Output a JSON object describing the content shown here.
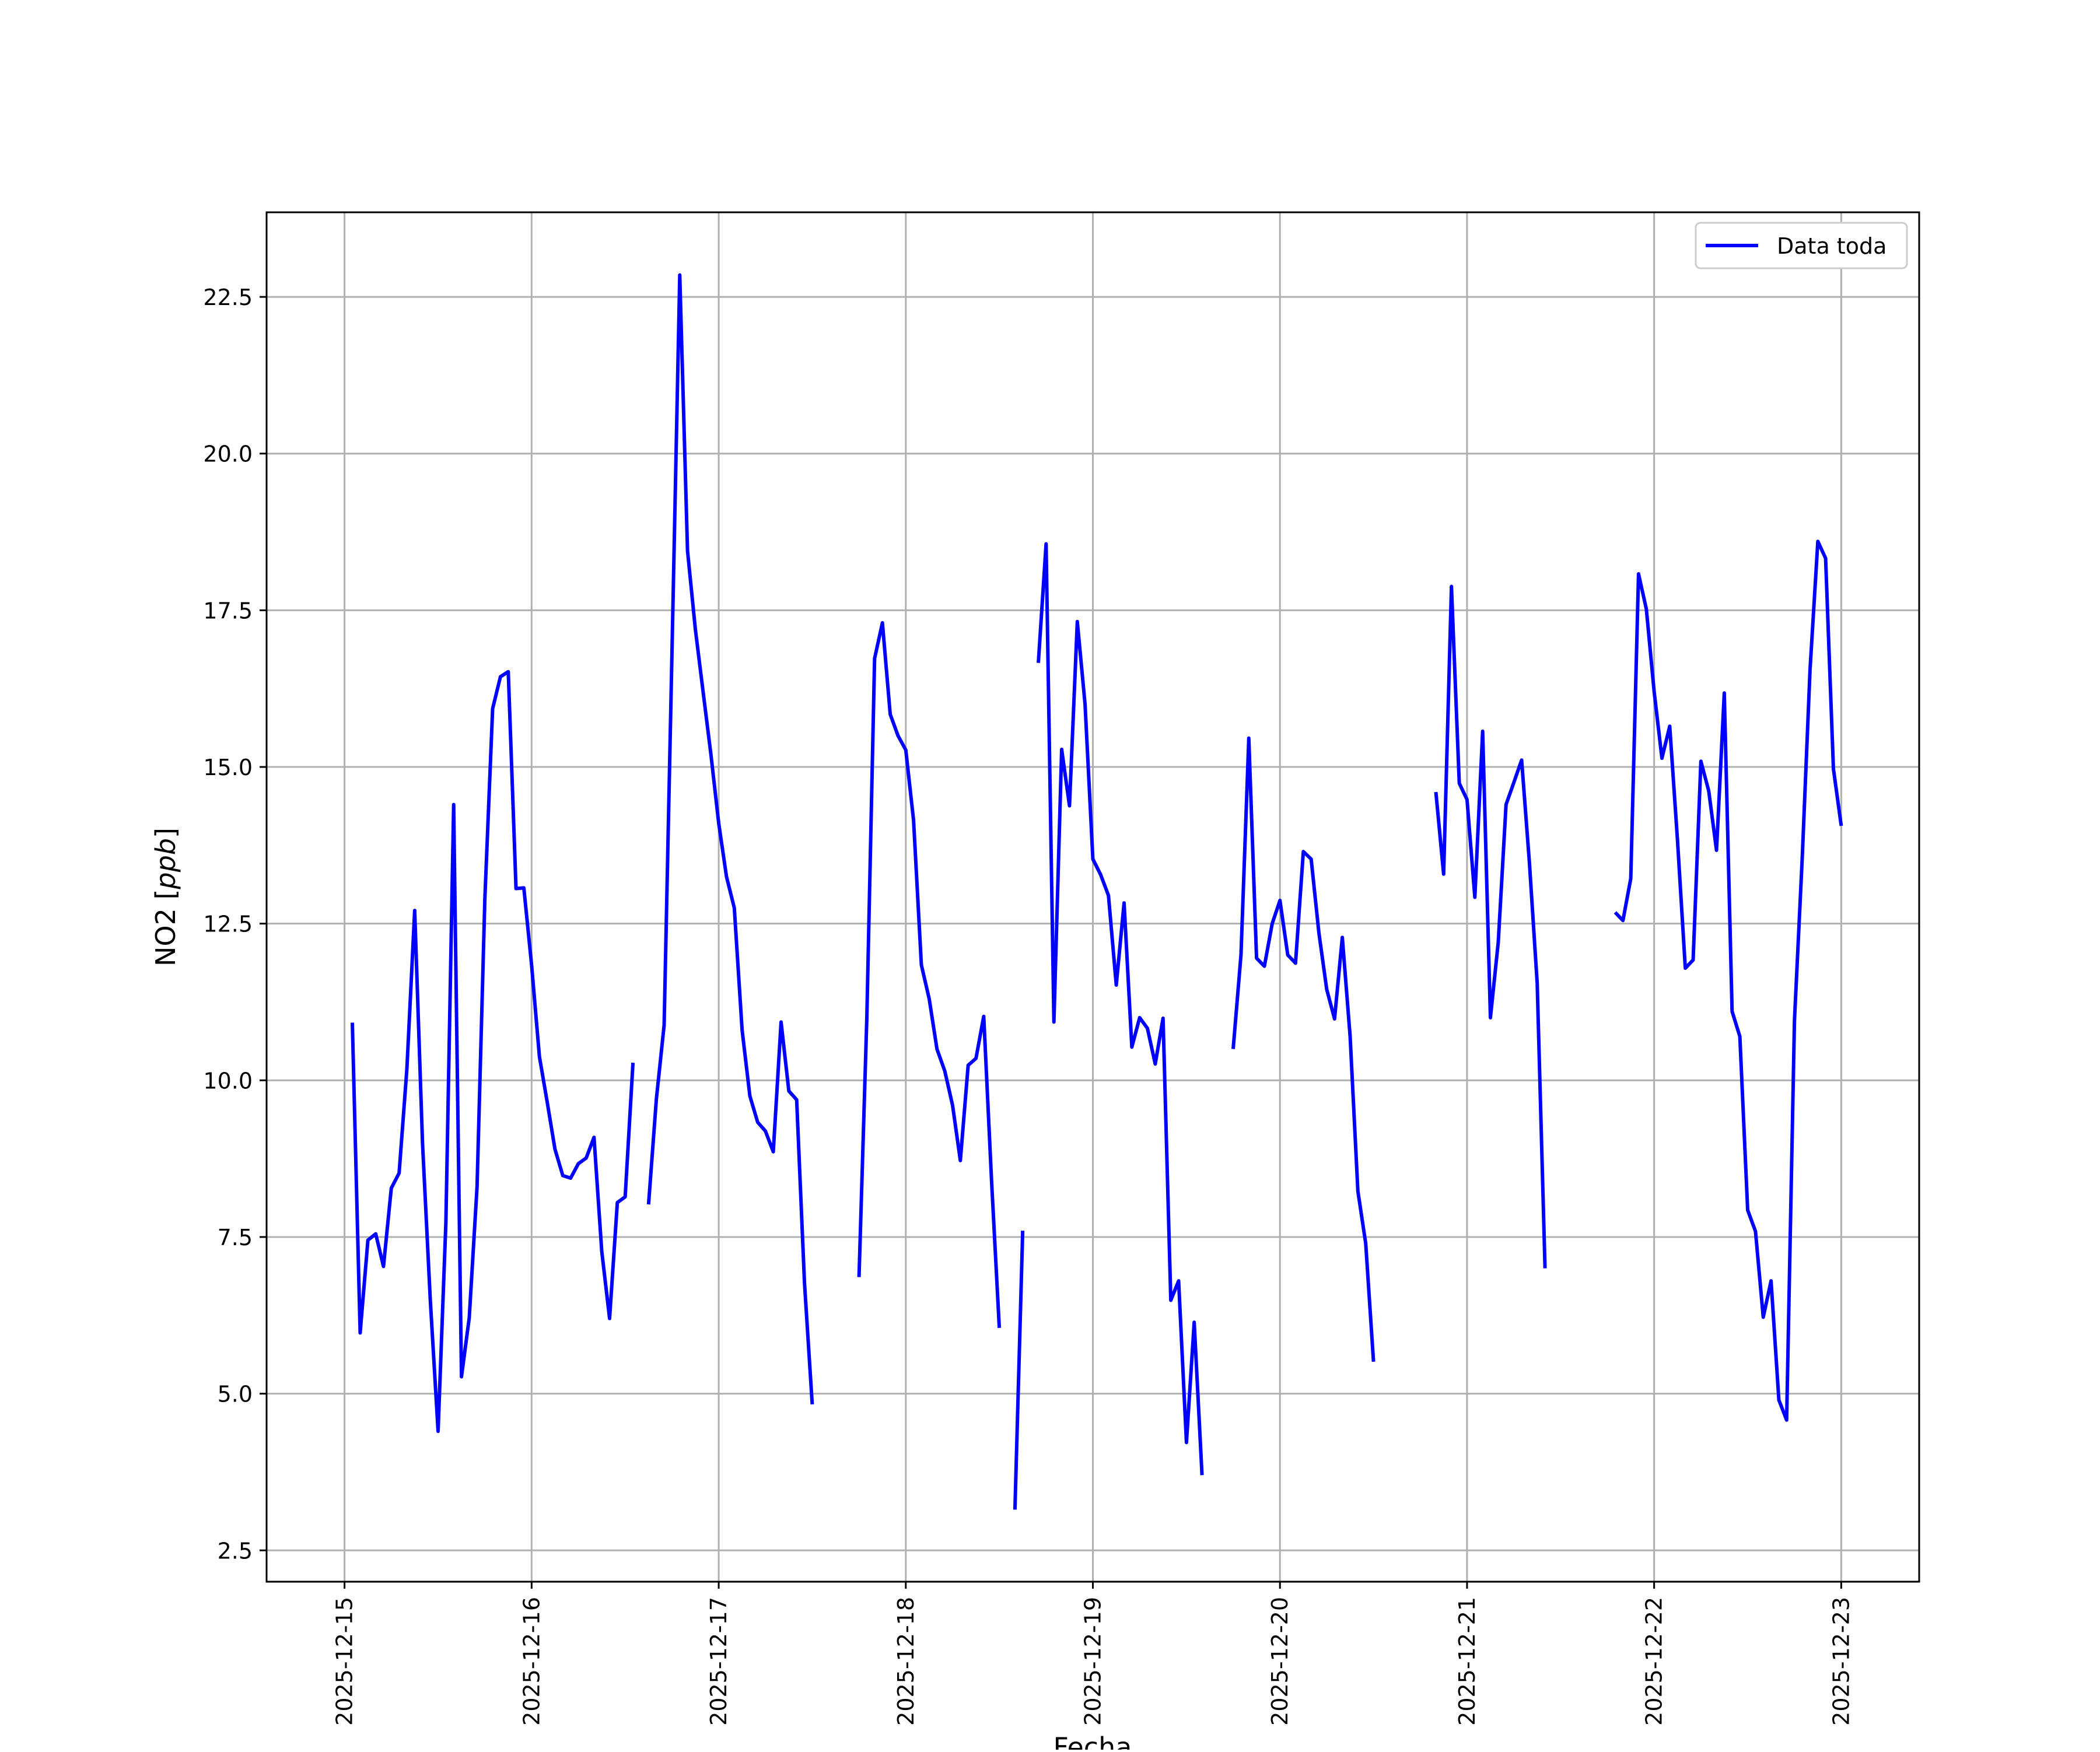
{
  "chart_data": {
    "type": "line",
    "title": "",
    "xlabel": "Fecha",
    "ylabel": "NO2 [ppb]",
    "ylabel_parts": {
      "main": "NO2 [",
      "italic": "ppb",
      "end": "]"
    },
    "x_range": [
      "2025-12-14 14:00",
      "2025-12-23 10:00"
    ],
    "ylim": [
      2.0,
      23.85
    ],
    "grid": true,
    "legend_position": "top-right",
    "x_ticks": [
      "2025-12-15",
      "2025-12-16",
      "2025-12-17",
      "2025-12-18",
      "2025-12-19",
      "2025-12-20",
      "2025-12-21",
      "2025-12-22",
      "2025-12-23"
    ],
    "y_ticks": [
      "2.5",
      "5.0",
      "7.5",
      "10.0",
      "12.5",
      "15.0",
      "17.5",
      "20.0",
      "22.5"
    ],
    "series": [
      {
        "name": "Data toda",
        "color": "#0000ff",
        "segments": [
          [
            [
              "2025-12-15 01:00",
              10.92
            ],
            [
              "2025-12-15 02:00",
              5.97
            ],
            [
              "2025-12-15 03:00",
              7.45
            ],
            [
              "2025-12-15 04:00",
              7.55
            ],
            [
              "2025-12-15 05:00",
              7.03
            ],
            [
              "2025-12-15 06:00",
              8.28
            ],
            [
              "2025-12-15 07:00",
              8.52
            ],
            [
              "2025-12-15 08:00",
              10.18
            ],
            [
              "2025-12-15 09:00",
              12.71
            ],
            [
              "2025-12-15 10:00",
              9.0
            ],
            [
              "2025-12-15 11:00",
              6.5
            ],
            [
              "2025-12-15 12:00",
              4.4
            ],
            [
              "2025-12-15 13:00",
              7.74
            ],
            [
              "2025-12-15 14:00",
              14.4
            ],
            [
              "2025-12-15 15:00",
              5.27
            ],
            [
              "2025-12-15 16:00",
              6.21
            ],
            [
              "2025-12-15 17:00",
              8.3
            ],
            [
              "2025-12-15 18:00",
              12.9
            ],
            [
              "2025-12-15 19:00",
              15.93
            ],
            [
              "2025-12-15 20:00",
              16.44
            ],
            [
              "2025-12-15 21:00",
              16.52
            ],
            [
              "2025-12-15 22:00",
              13.06
            ],
            [
              "2025-12-15 23:00",
              13.07
            ],
            [
              "2025-12-16 00:00",
              11.84
            ],
            [
              "2025-12-16 01:00",
              10.38
            ],
            [
              "2025-12-16 02:00",
              9.65
            ],
            [
              "2025-12-16 03:00",
              8.9
            ],
            [
              "2025-12-16 04:00",
              8.48
            ],
            [
              "2025-12-16 05:00",
              8.44
            ],
            [
              "2025-12-16 06:00",
              8.67
            ],
            [
              "2025-12-16 07:00",
              8.76
            ],
            [
              "2025-12-16 08:00",
              9.09
            ],
            [
              "2025-12-16 09:00",
              7.27
            ],
            [
              "2025-12-16 10:00",
              6.2
            ],
            [
              "2025-12-16 11:00",
              8.05
            ],
            [
              "2025-12-16 12:00",
              8.14
            ],
            [
              "2025-12-16 13:00",
              10.28
            ]
          ],
          [
            [
              "2025-12-16 15:00",
              8.02
            ],
            [
              "2025-12-16 16:00",
              9.7
            ],
            [
              "2025-12-16 17:00",
              10.88
            ],
            [
              "2025-12-16 18:00",
              16.8
            ],
            [
              "2025-12-16 19:00",
              22.85
            ],
            [
              "2025-12-16 20:00",
              18.45
            ],
            [
              "2025-12-16 21:00",
              17.2
            ],
            [
              "2025-12-16 22:00",
              16.2
            ],
            [
              "2025-12-16 23:00",
              15.2
            ],
            [
              "2025-12-17 00:00",
              14.1
            ],
            [
              "2025-12-17 01:00",
              13.25
            ],
            [
              "2025-12-17 02:00",
              12.75
            ],
            [
              "2025-12-17 03:00",
              10.8
            ],
            [
              "2025-12-17 04:00",
              9.75
            ],
            [
              "2025-12-17 05:00",
              9.33
            ],
            [
              "2025-12-17 06:00",
              9.19
            ],
            [
              "2025-12-17 07:00",
              8.86
            ],
            [
              "2025-12-17 08:00",
              10.93
            ],
            [
              "2025-12-17 09:00",
              9.83
            ],
            [
              "2025-12-17 10:00",
              9.69
            ],
            [
              "2025-12-17 11:00",
              6.77
            ],
            [
              "2025-12-17 12:00",
              4.83
            ]
          ],
          [
            [
              "2025-12-17 18:00",
              6.86
            ],
            [
              "2025-12-17 19:00",
              11.0
            ],
            [
              "2025-12-17 20:00",
              16.73
            ],
            [
              "2025-12-17 21:00",
              17.3
            ],
            [
              "2025-12-17 22:00",
              15.84
            ],
            [
              "2025-12-17 23:00",
              15.5
            ],
            [
              "2025-12-18 00:00",
              15.27
            ],
            [
              "2025-12-18 01:00",
              14.15
            ],
            [
              "2025-12-18 02:00",
              11.84
            ],
            [
              "2025-12-18 03:00",
              11.3
            ],
            [
              "2025-12-18 04:00",
              10.5
            ],
            [
              "2025-12-18 05:00",
              10.15
            ],
            [
              "2025-12-18 06:00",
              9.6
            ],
            [
              "2025-12-18 07:00",
              8.72
            ],
            [
              "2025-12-18 08:00",
              10.24
            ],
            [
              "2025-12-18 09:00",
              10.35
            ],
            [
              "2025-12-18 10:00",
              11.02
            ],
            [
              "2025-12-18 11:00",
              8.4
            ],
            [
              "2025-12-18 12:00",
              6.05
            ]
          ],
          [
            [
              "2025-12-18 14:00",
              3.15
            ],
            [
              "2025-12-18 15:00",
              7.6
            ]
          ],
          [
            [
              "2025-12-18 17:00",
              16.66
            ],
            [
              "2025-12-18 18:00",
              18.56
            ],
            [
              "2025-12-18 19:00",
              10.93
            ],
            [
              "2025-12-18 20:00",
              15.28
            ],
            [
              "2025-12-18 21:00",
              14.38
            ],
            [
              "2025-12-18 22:00",
              17.32
            ],
            [
              "2025-12-18 23:00",
              16.0
            ],
            [
              "2025-12-19 00:00",
              13.53
            ],
            [
              "2025-12-19 01:00",
              13.28
            ],
            [
              "2025-12-19 02:00",
              12.95
            ],
            [
              "2025-12-19 03:00",
              11.52
            ],
            [
              "2025-12-19 04:00",
              12.83
            ],
            [
              "2025-12-19 05:00",
              10.53
            ],
            [
              "2025-12-19 06:00",
              11.0
            ],
            [
              "2025-12-19 07:00",
              10.83
            ],
            [
              "2025-12-19 08:00",
              10.26
            ],
            [
              "2025-12-19 09:00",
              10.99
            ],
            [
              "2025-12-19 10:00",
              6.49
            ],
            [
              "2025-12-19 11:00",
              6.8
            ],
            [
              "2025-12-19 12:00",
              4.22
            ],
            [
              "2025-12-19 13:00",
              6.14
            ],
            [
              "2025-12-19 14:00",
              3.7
            ]
          ],
          [
            [
              "2025-12-19 18:00",
              10.5
            ],
            [
              "2025-12-19 19:00",
              12.0
            ],
            [
              "2025-12-19 20:00",
              15.46
            ],
            [
              "2025-12-19 21:00",
              11.95
            ],
            [
              "2025-12-19 22:00",
              11.82
            ],
            [
              "2025-12-19 23:00",
              12.5
            ],
            [
              "2025-12-20 00:00",
              12.87
            ],
            [
              "2025-12-20 01:00",
              12.0
            ],
            [
              "2025-12-20 02:00",
              11.87
            ],
            [
              "2025-12-20 03:00",
              13.65
            ],
            [
              "2025-12-20 04:00",
              13.53
            ],
            [
              "2025-12-20 05:00",
              12.35
            ],
            [
              "2025-12-20 06:00",
              11.45
            ],
            [
              "2025-12-20 07:00",
              10.98
            ],
            [
              "2025-12-20 08:00",
              12.28
            ],
            [
              "2025-12-20 09:00",
              10.7
            ],
            [
              "2025-12-20 10:00",
              8.23
            ],
            [
              "2025-12-20 11:00",
              7.4
            ],
            [
              "2025-12-20 12:00",
              5.51
            ]
          ],
          [
            [
              "2025-12-20 20:00",
              14.6
            ],
            [
              "2025-12-20 21:00",
              13.29
            ],
            [
              "2025-12-20 22:00",
              17.88
            ],
            [
              "2025-12-20 23:00",
              14.74
            ],
            [
              "2025-12-21 00:00",
              14.48
            ],
            [
              "2025-12-21 01:00",
              12.92
            ],
            [
              "2025-12-21 02:00",
              15.57
            ],
            [
              "2025-12-21 03:00",
              11.0
            ],
            [
              "2025-12-21 04:00",
              12.2
            ],
            [
              "2025-12-21 05:00",
              14.4
            ],
            [
              "2025-12-21 06:00",
              14.75
            ],
            [
              "2025-12-21 07:00",
              15.11
            ],
            [
              "2025-12-21 08:00",
              13.48
            ],
            [
              "2025-12-21 09:00",
              11.55
            ],
            [
              "2025-12-21 10:00",
              7.0
            ]
          ],
          [
            [
              "2025-12-21 19:00",
              12.68
            ],
            [
              "2025-12-21 20:00",
              12.55
            ],
            [
              "2025-12-21 21:00",
              13.22
            ],
            [
              "2025-12-21 22:00",
              18.08
            ],
            [
              "2025-12-21 23:00",
              17.52
            ],
            [
              "2025-12-22 00:00",
              16.2
            ],
            [
              "2025-12-22 01:00",
              15.14
            ],
            [
              "2025-12-22 02:00",
              15.65
            ],
            [
              "2025-12-22 03:00",
              13.83
            ],
            [
              "2025-12-22 04:00",
              11.79
            ],
            [
              "2025-12-22 05:00",
              11.92
            ],
            [
              "2025-12-22 06:00",
              15.09
            ],
            [
              "2025-12-22 07:00",
              14.62
            ],
            [
              "2025-12-22 08:00",
              13.67
            ],
            [
              "2025-12-22 09:00",
              16.18
            ],
            [
              "2025-12-22 10:00",
              11.1
            ],
            [
              "2025-12-22 11:00",
              10.7
            ],
            [
              "2025-12-22 12:00",
              7.93
            ],
            [
              "2025-12-22 13:00",
              7.59
            ],
            [
              "2025-12-22 14:00",
              6.22
            ],
            [
              "2025-12-22 15:00",
              6.8
            ],
            [
              "2025-12-22 16:00",
              4.9
            ],
            [
              "2025-12-22 17:00",
              4.58
            ],
            [
              "2025-12-22 18:00",
              10.95
            ],
            [
              "2025-12-22 19:00",
              13.56
            ],
            [
              "2025-12-22 20:00",
              16.55
            ],
            [
              "2025-12-22 21:00",
              18.6
            ],
            [
              "2025-12-22 22:00",
              18.33
            ],
            [
              "2025-12-22 23:00",
              14.97
            ],
            [
              "2025-12-23 00:00",
              14.06
            ]
          ]
        ]
      }
    ]
  }
}
